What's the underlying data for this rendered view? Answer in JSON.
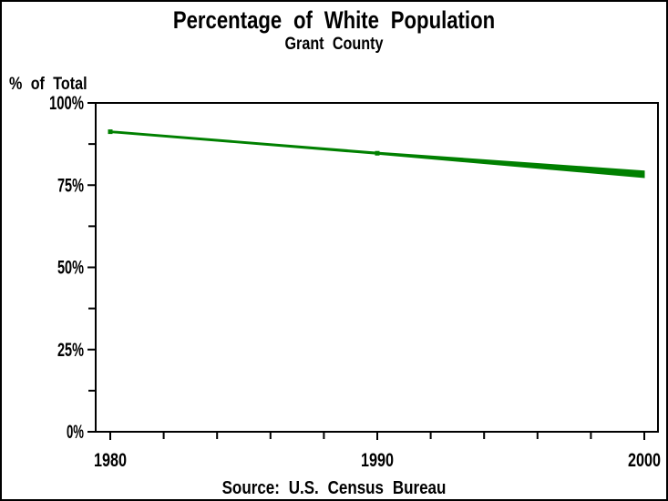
{
  "page": {
    "title": "Percentage of White Population",
    "subtitle": "Grant County",
    "y_axis_label": "% of Total",
    "footnote": "Source: U.S. Census Bureau"
  },
  "chart_data": {
    "type": "line",
    "title": "Percentage of White Population",
    "subtitle": "Grant County",
    "xlabel": "",
    "ylabel": "% of Total",
    "footnote": "Source: U.S. Census Bureau",
    "x": [
      1980,
      1990,
      2000
    ],
    "values": [
      91,
      85,
      78
    ],
    "band": {
      "description": "single green series drawn as a wedge that thickens toward 2000",
      "upper": [
        91.5,
        85.0,
        79.3
      ],
      "lower": [
        91.0,
        84.4,
        77.3
      ]
    },
    "markers": [
      {
        "x": 1980,
        "y": 91.25
      },
      {
        "x": 1990,
        "y": 84.7
      }
    ],
    "xlim": [
      1980,
      2000
    ],
    "ylim": [
      0,
      100
    ],
    "x_major_ticks": [
      1980,
      1990,
      2000
    ],
    "x_tick_labels": [
      "1980",
      "1990",
      "2000"
    ],
    "x_minor_step_years": 2,
    "y_major_ticks": [
      0,
      25,
      50,
      75,
      100
    ],
    "y_tick_labels": [
      "0%",
      "25%",
      "50%",
      "75%",
      "100%"
    ],
    "y_minor_ticks": [
      12.5,
      37.5,
      62.5,
      87.5
    ],
    "grid": false,
    "legend": "none",
    "line_color": "#008000",
    "axis_color": "#000000",
    "background": "#ffffff"
  }
}
